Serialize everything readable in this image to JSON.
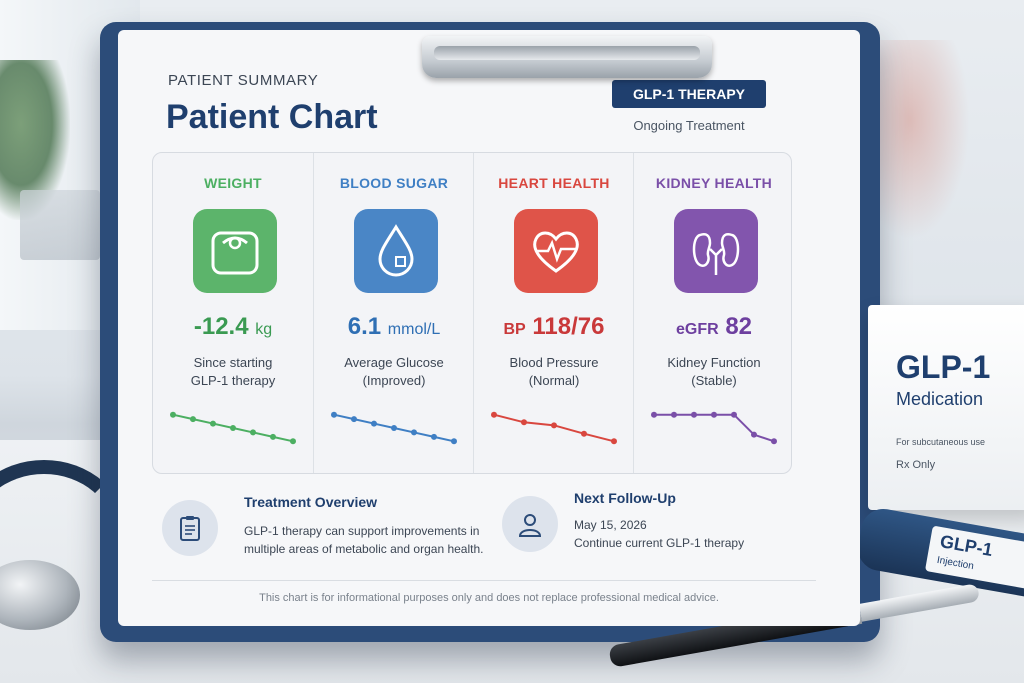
{
  "chart": {
    "eyebrow": "PATIENT SUMMARY",
    "title": "Patient Chart",
    "badge": "GLP-1 THERAPY",
    "badge_sub": "Ongoing Treatment"
  },
  "metrics": [
    {
      "label": "WEIGHT",
      "value": "-12.4",
      "unit": "kg",
      "desc1": "Since starting",
      "desc2": "GLP-1 therapy",
      "color": "#4caf62",
      "icon": "scale-icon",
      "trend": [
        7,
        6,
        5,
        4,
        3,
        2,
        1
      ]
    },
    {
      "label": "BLOOD SUGAR",
      "value": "6.1",
      "unit": "mmol/L",
      "desc1": "Average Glucose",
      "desc2": "(Improved)",
      "color": "#3f7fc4",
      "icon": "water-drop-icon",
      "trend": [
        7,
        6,
        5,
        4,
        3,
        2,
        1
      ]
    },
    {
      "label": "HEART HEALTH",
      "prefix": "BP",
      "value": "118/76",
      "unit": "",
      "desc1": "Blood Pressure",
      "desc2": "(Normal)",
      "color": "#d9473f",
      "icon": "heart-pulse-icon",
      "trend": [
        5,
        4,
        3.6,
        2.5,
        1.5
      ]
    },
    {
      "label": "KIDNEY HEALTH",
      "prefix": "eGFR",
      "value": "82",
      "unit": "",
      "desc1": "Kidney Function",
      "desc2": "(Stable)",
      "color": "#7a4fa8",
      "icon": "kidneys-icon",
      "trend": [
        3,
        3,
        3,
        3,
        3,
        2.7,
        2.6
      ]
    }
  ],
  "overview": {
    "title": "Treatment Overview",
    "line1": "GLP-1 therapy can support improvements in",
    "line2": "multiple areas of metabolic and organ health.",
    "icon": "clipboard-icon"
  },
  "followup": {
    "title": "Next Follow-Up",
    "line1": "May 15, 2026",
    "line2": "Continue current GLP-1 therapy",
    "icon": "person-icon"
  },
  "disclaimer": "This chart is for informational purposes only and does not replace professional medical advice.",
  "medbox": {
    "title": "GLP-1",
    "subtitle": "Medication",
    "usage": "For subcutaneous use",
    "rx": "Rx Only"
  },
  "pen": {
    "title": "GLP-1",
    "subtitle": "Injection"
  }
}
